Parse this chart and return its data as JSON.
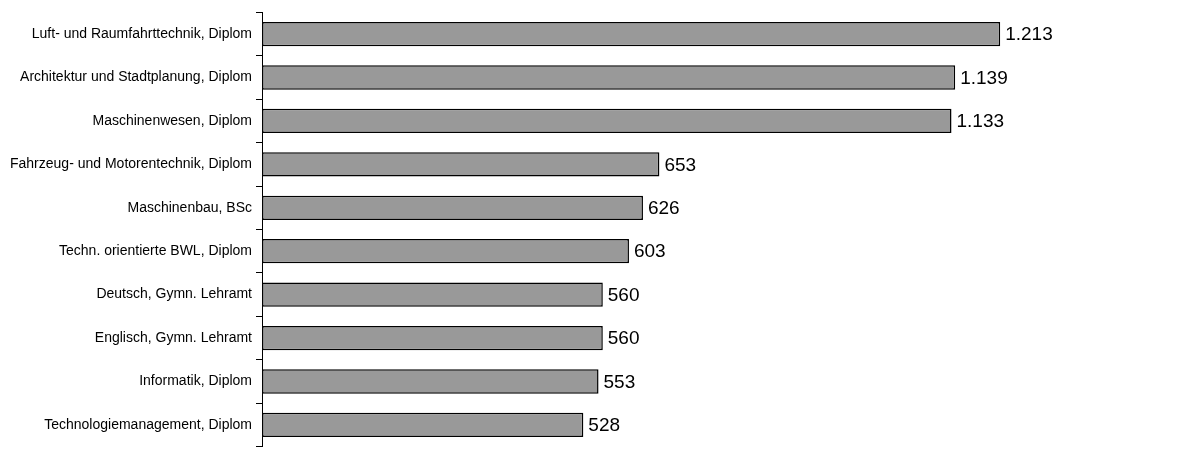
{
  "chart_data": {
    "type": "bar",
    "orientation": "horizontal",
    "categories": [
      "Luft- und Raumfahrttechnik, Diplom",
      "Architektur und Stadtplanung, Diplom",
      "Maschinenwesen, Diplom",
      "Fahrzeug- und Motorentechnik, Diplom",
      "Maschinenbau, BSc",
      "Techn. orientierte BWL, Diplom",
      "Deutsch, Gymn. Lehramt",
      "Englisch, Gymn. Lehramt",
      "Informatik, Diplom",
      "Technologiemanagement, Diplom"
    ],
    "values": [
      1213,
      1139,
      1133,
      653,
      626,
      603,
      560,
      560,
      553,
      528
    ],
    "value_labels": [
      "1.213",
      "1.139",
      "1.133",
      "653",
      "626",
      "603",
      "560",
      "560",
      "553",
      "528"
    ],
    "color": "#999999",
    "legend": false,
    "tick_labels": "y"
  }
}
